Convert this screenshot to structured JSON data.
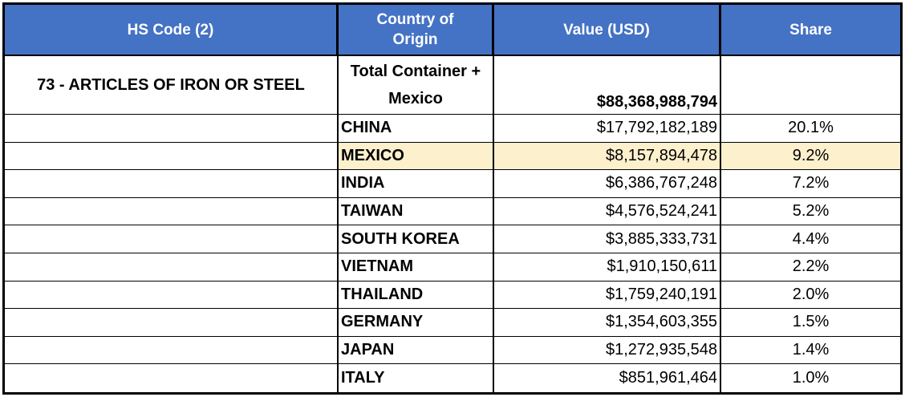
{
  "chart_data": {
    "type": "table",
    "columns": [
      "HS Code (2)",
      "Country of Origin",
      "Value (USD)",
      "Share"
    ],
    "summary_row": {
      "hs_code": "73 - ARTICLES OF IRON OR STEEL",
      "origin": "Total Container + Mexico",
      "value_usd": "$88,368,988,794",
      "share": ""
    },
    "country_rows": [
      {
        "country": "CHINA",
        "value_usd": "$17,792,182,189",
        "share": "20.1%",
        "highlighted": false
      },
      {
        "country": "MEXICO",
        "value_usd": "$8,157,894,478",
        "share": "9.2%",
        "highlighted": true
      },
      {
        "country": "INDIA",
        "value_usd": "$6,386,767,248",
        "share": "7.2%",
        "highlighted": false
      },
      {
        "country": "TAIWAN",
        "value_usd": "$4,576,524,241",
        "share": "5.2%",
        "highlighted": false
      },
      {
        "country": "SOUTH KOREA",
        "value_usd": "$3,885,333,731",
        "share": "4.4%",
        "highlighted": false
      },
      {
        "country": "VIETNAM",
        "value_usd": "$1,910,150,611",
        "share": "2.2%",
        "highlighted": false
      },
      {
        "country": "THAILAND",
        "value_usd": "$1,759,240,191",
        "share": "2.0%",
        "highlighted": false
      },
      {
        "country": "GERMANY",
        "value_usd": "$1,354,603,355",
        "share": "1.5%",
        "highlighted": false
      },
      {
        "country": "JAPAN",
        "value_usd": "$1,272,935,548",
        "share": "1.4%",
        "highlighted": false
      },
      {
        "country": "ITALY",
        "value_usd": "$851,961,464",
        "share": "1.0%",
        "highlighted": false
      }
    ],
    "colors": {
      "header_bg": "#4472C4",
      "header_text": "#FFFFFF",
      "highlight_bg": "#FCF0CD",
      "border": "#000000"
    }
  }
}
